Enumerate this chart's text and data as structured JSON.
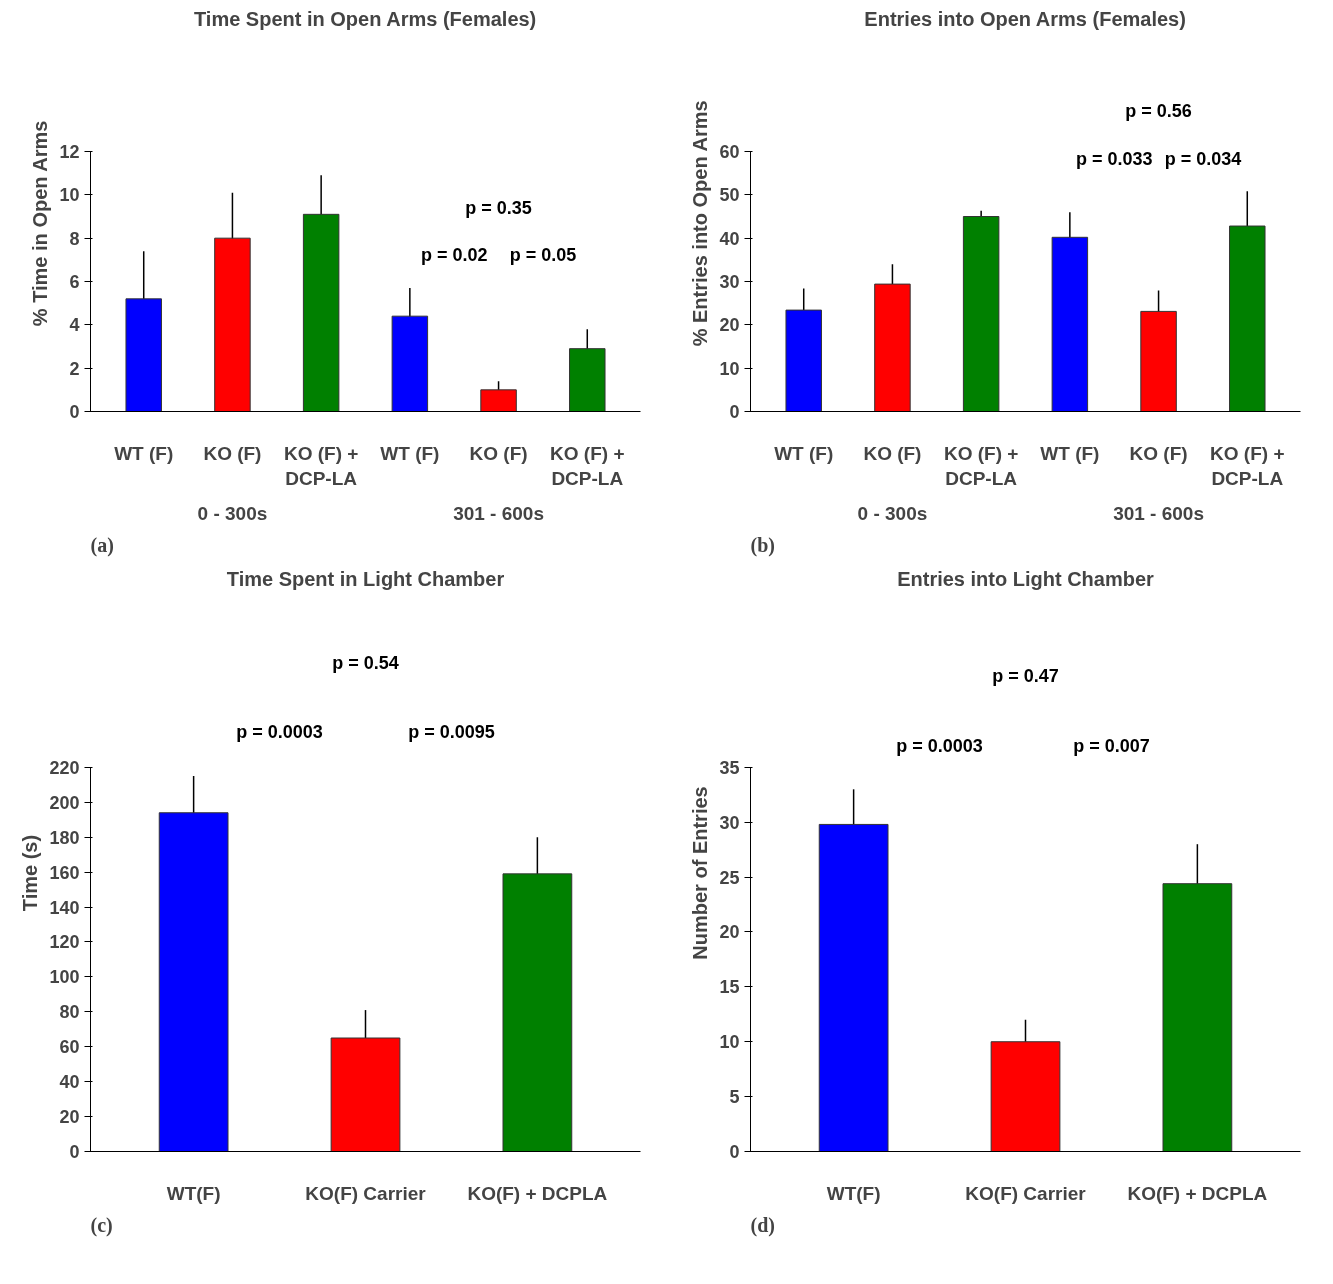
{
  "chart_data": [
    {
      "type": "bar",
      "title": "Time Spent in Open Arms (Females)",
      "ylabel": "% Time in Open Arms",
      "categories": [
        "WT (F)",
        "KO (F)",
        "KO (F) + DCP-LA",
        "WT (F)",
        "KO (F)",
        "KO (F) + DCP-LA"
      ],
      "values": [
        5.2,
        8.0,
        9.1,
        4.4,
        1.0,
        2.9
      ],
      "errors": [
        2.2,
        2.1,
        1.8,
        1.3,
        0.4,
        0.9
      ],
      "colors": [
        "#0000ff",
        "#ff0000",
        "#008000",
        "#0000ff",
        "#ff0000",
        "#008000"
      ],
      "ylim": [
        0,
        12
      ],
      "yticks": [
        0,
        2,
        4,
        6,
        8,
        10,
        12
      ],
      "grid": false,
      "annotations": [
        "p = 0.02",
        "p = 0.05",
        "p = 0.35",
        "0 - 300s",
        "301 - 600s",
        "(a)"
      ]
    },
    {
      "type": "bar",
      "title": "Entries into Open Arms (Females)",
      "ylabel": "% Entries into Open Arms",
      "categories": [
        "WT (F)",
        "KO (F)",
        "KO (F) + DCP-LA",
        "WT (F)",
        "KO (F)",
        "KO (F) + DCP-LA"
      ],
      "values": [
        23.4,
        29.4,
        45,
        40.2,
        23.1,
        42.8
      ],
      "errors": [
        5,
        4.6,
        1.3,
        5.8,
        4.8,
        8
      ],
      "colors": [
        "#0000ff",
        "#ff0000",
        "#008000",
        "#0000ff",
        "#ff0000",
        "#008000"
      ],
      "ylim": [
        0,
        60
      ],
      "yticks": [
        0,
        10,
        20,
        30,
        40,
        50,
        60
      ],
      "grid": false,
      "annotations": [
        "p = 0.033",
        "p = 0.034",
        "p = 0.56",
        "0 - 300s",
        "301 - 600s",
        "(b)"
      ]
    },
    {
      "type": "bar",
      "title": "Time Spent in Light Chamber",
      "ylabel": "Time (s)",
      "categories": [
        "WT(F)",
        "KO(F) Carrier",
        "KO(F) + DCPLA"
      ],
      "values": [
        194,
        65,
        159
      ],
      "errors": [
        21,
        16,
        21
      ],
      "colors": [
        "#0000ff",
        "#ff0000",
        "#008000"
      ],
      "ylim": [
        0,
        220
      ],
      "yticks": [
        0,
        20,
        40,
        60,
        80,
        100,
        120,
        140,
        160,
        180,
        200,
        220
      ],
      "grid": false,
      "annotations": [
        "p = 0.0003",
        "p = 0.0095",
        "p = 0.54",
        "(c)"
      ]
    },
    {
      "type": "bar",
      "title": "Entries into Light Chamber",
      "ylabel": "Number of Entries",
      "categories": [
        "WT(F)",
        "KO(F) Carrier",
        "KO(F) + DCPLA"
      ],
      "values": [
        29.8,
        10,
        24.4
      ],
      "errors": [
        3.2,
        2,
        3.6
      ],
      "colors": [
        "#0000ff",
        "#ff0000",
        "#008000"
      ],
      "ylim": [
        0,
        35
      ],
      "yticks": [
        0,
        5,
        10,
        15,
        20,
        25,
        30,
        35
      ],
      "grid": false,
      "annotations": [
        "p = 0.0003",
        "p = 0.007",
        "p = 0.47",
        "(d)"
      ]
    }
  ]
}
